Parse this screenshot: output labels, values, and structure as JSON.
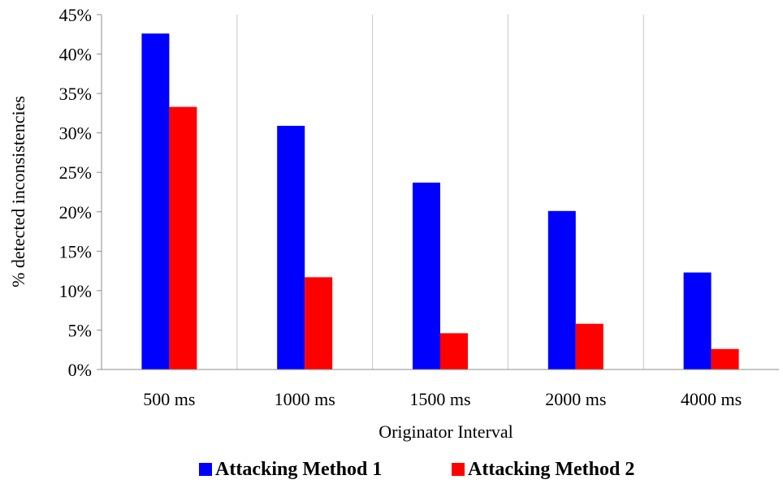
{
  "chart_data": {
    "type": "bar",
    "title": "",
    "xlabel": "Originator Interval",
    "ylabel": "% detected inconsistencies",
    "categories": [
      "500 ms",
      "1000 ms",
      "1500 ms",
      "2000 ms",
      "4000 ms"
    ],
    "series": [
      {
        "name": "Attacking Method 1",
        "color": "#0000ff",
        "values": [
          42.6,
          30.9,
          23.7,
          20.1,
          12.3
        ]
      },
      {
        "name": "Attacking Method 2",
        "color": "#ff0000",
        "values": [
          33.3,
          11.7,
          4.6,
          5.8,
          2.6
        ]
      }
    ],
    "ylim": [
      0,
      45
    ],
    "yticks": [
      0,
      5,
      10,
      15,
      20,
      25,
      30,
      35,
      40,
      45
    ],
    "ytick_labels": [
      "0%",
      "5%",
      "10%",
      "15%",
      "20%",
      "25%",
      "30%",
      "35%",
      "40%",
      "45%"
    ],
    "grid": "vertical category separators",
    "legend_position": "bottom"
  }
}
